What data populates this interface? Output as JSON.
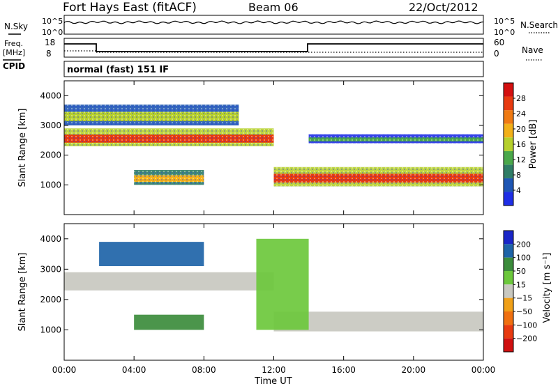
{
  "header": {
    "station": "Fort Hays East (fitACF)",
    "beam": "Beam 06",
    "date": "22/Oct/2012"
  },
  "strip": {
    "nsky_label": "N.Sky",
    "nsearch_label": "N.Search",
    "noise_ticks": [
      "10^5",
      "10^0"
    ],
    "freq_label_1": "Freq.",
    "freq_label_2": "[MHz]",
    "freq_ticks": [
      "18",
      "8"
    ],
    "nave_label": "Nave",
    "nave_ticks": [
      "60",
      "0"
    ],
    "cpid_label": "CPID",
    "cpid_text": "normal (fast) 151 IF"
  },
  "colors": {
    "power_scale": [
      "#1e2ee6",
      "#1e56b4",
      "#2f7d66",
      "#4aa84a",
      "#b6d02c",
      "#f2b018",
      "#f07a12",
      "#e83a10",
      "#d41010"
    ],
    "velocity_scale": [
      "#1a26c8",
      "#1e64a8",
      "#3c8c3c",
      "#6cc83c",
      "#c8c8c0",
      "#f0a018",
      "#f07010",
      "#e83a10",
      "#d01010"
    ]
  },
  "chart_data": [
    {
      "type": "heatmap",
      "quantity": "power",
      "xlabel": "",
      "ylabel": "Slant Range [km]",
      "y_ticks": [
        1000,
        2000,
        3000,
        4000
      ],
      "ylim": [
        0,
        4500
      ],
      "x_ticks": [
        "00:00",
        "04:00",
        "08:00",
        "12:00",
        "16:00",
        "20:00",
        "00:00"
      ],
      "xlim_hours": [
        0,
        24
      ],
      "colorbar_label": "Power [dB]",
      "colorbar_ticks": [
        4,
        8,
        12,
        16,
        20,
        24,
        28
      ],
      "colorbar_range": [
        0,
        32
      ],
      "echo_bands": [
        {
          "t0": 0,
          "t1": 12,
          "r0": 2300,
          "r1": 2900,
          "peak_db": 26
        },
        {
          "t0": 12,
          "t1": 24,
          "r0": 950,
          "r1": 1600,
          "peak_db": 28
        },
        {
          "t0": 4,
          "t1": 8,
          "r0": 1000,
          "r1": 1500,
          "peak_db": 18
        },
        {
          "t0": 0,
          "t1": 10,
          "r0": 3000,
          "r1": 3700,
          "peak_db": 16
        },
        {
          "t0": 14,
          "t1": 24,
          "r0": 2400,
          "r1": 2700,
          "peak_db": 12
        }
      ]
    },
    {
      "type": "heatmap",
      "quantity": "velocity",
      "xlabel": "Time UT",
      "ylabel": "Slant Range [km]",
      "y_ticks": [
        1000,
        2000,
        3000,
        4000
      ],
      "ylim": [
        0,
        4500
      ],
      "x_ticks": [
        "00:00",
        "04:00",
        "08:00",
        "12:00",
        "16:00",
        "20:00",
        "00:00"
      ],
      "xlim_hours": [
        0,
        24
      ],
      "colorbar_label": "Velocity [m s⁻¹]",
      "colorbar_ticks": [
        "200",
        "100",
        "50",
        "15",
        "−15",
        "−50",
        "−100",
        "−200"
      ],
      "echo_bands": [
        {
          "t0": 0,
          "t1": 12,
          "r0": 2300,
          "r1": 2900,
          "velocity": 0
        },
        {
          "t0": 12,
          "t1": 24,
          "r0": 950,
          "r1": 1600,
          "velocity": 0
        },
        {
          "t0": 4,
          "t1": 8,
          "r0": 1000,
          "r1": 1500,
          "velocity": 60
        },
        {
          "t0": 2,
          "t1": 8,
          "r0": 3100,
          "r1": 3900,
          "velocity": 120
        },
        {
          "t0": 11,
          "t1": 14,
          "r0": 1000,
          "r1": 4000,
          "velocity": 40
        }
      ]
    }
  ]
}
